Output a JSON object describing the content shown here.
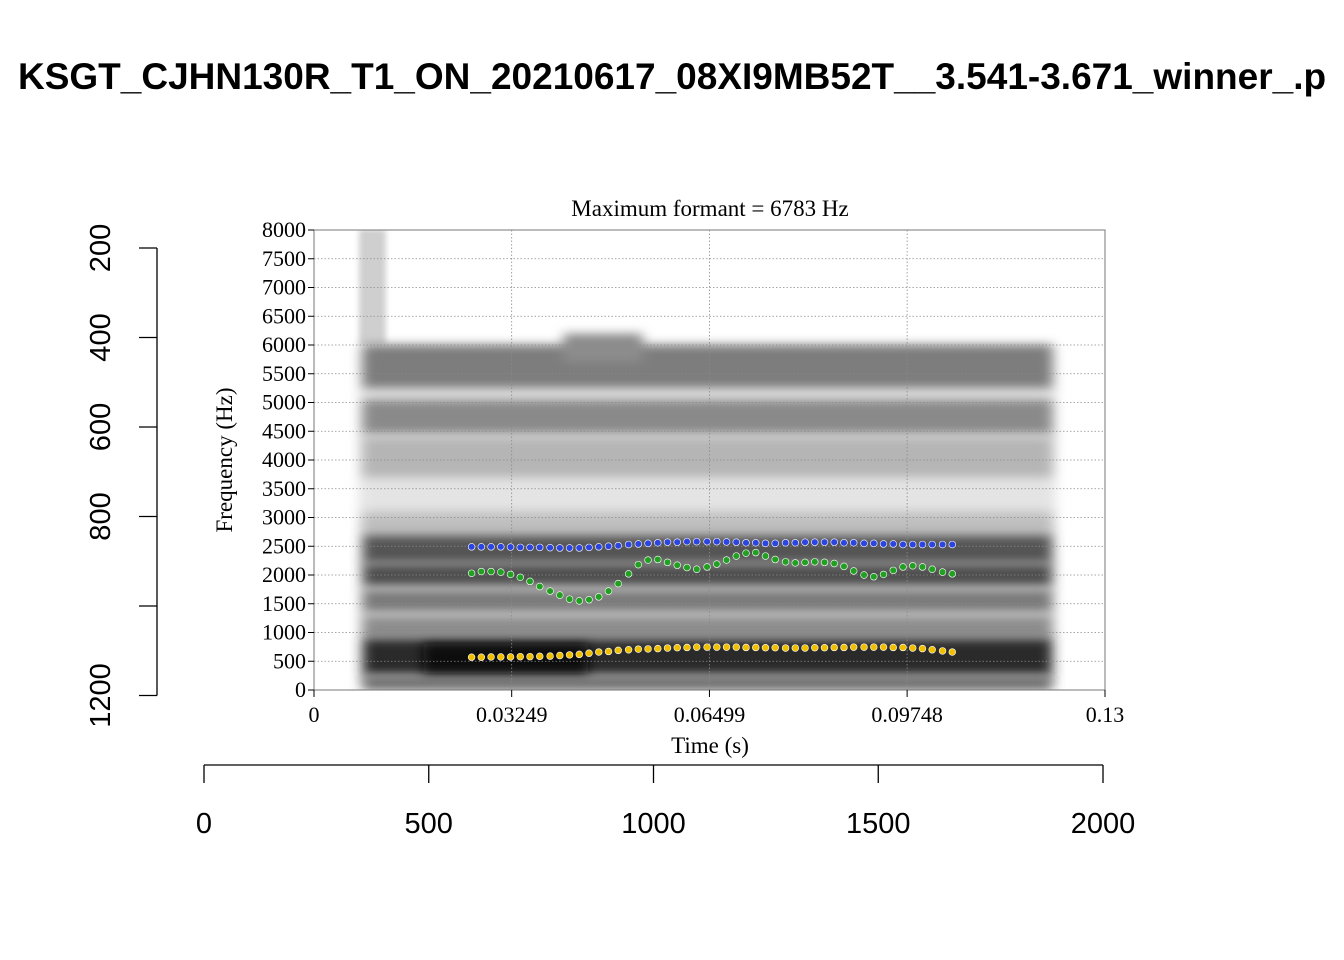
{
  "title": "KSGT_CJHN130R_T1_ON_20210617_08XI9MB52T__3.541-3.671_winner_.p",
  "chart_data": {
    "type": "scatter",
    "title": "Maximum formant  =  6783 Hz",
    "xlabel": "Time (s)",
    "ylabel": "Frequency (Hz)",
    "xlim": [
      0,
      0.13
    ],
    "ylim": [
      0,
      8000
    ],
    "x_ticks": [
      "0",
      "0.03249",
      "0.06499",
      "0.09748",
      "0.13"
    ],
    "y_ticks": [
      "0",
      "500",
      "1000",
      "1500",
      "2000",
      "2500",
      "3000",
      "3500",
      "4000",
      "4500",
      "5000",
      "5500",
      "6000",
      "6500",
      "7000",
      "7500",
      "8000"
    ],
    "grid": true,
    "background": "spectrogram (grayscale)",
    "outer_axes": {
      "bottom": {
        "range": [
          0,
          2000
        ],
        "ticks": [
          "0",
          "500",
          "1000",
          "1500",
          "2000"
        ]
      },
      "left": {
        "range": [
          1200,
          100
        ],
        "ticks": [
          "200",
          "400",
          "600",
          "800",
          "1200"
        ]
      }
    },
    "series": [
      {
        "color": "#f0c000",
        "x": [
          0.0259,
          0.0275,
          0.0291,
          0.0307,
          0.0323,
          0.0339,
          0.0355,
          0.0371,
          0.0388,
          0.0404,
          0.042,
          0.0436,
          0.0452,
          0.0468,
          0.0484,
          0.05,
          0.0517,
          0.0533,
          0.0549,
          0.0565,
          0.0581,
          0.0597,
          0.0613,
          0.0629,
          0.0646,
          0.0662,
          0.0678,
          0.0694,
          0.071,
          0.0726,
          0.0742,
          0.0758,
          0.0775,
          0.0791,
          0.0807,
          0.0823,
          0.0839,
          0.0855,
          0.0871,
          0.0887,
          0.0904,
          0.092,
          0.0936,
          0.0952,
          0.0968,
          0.0984,
          0.1,
          0.1016,
          0.1033,
          0.1049
        ],
        "values": [
          570,
          570,
          575,
          575,
          575,
          580,
          580,
          585,
          590,
          600,
          610,
          620,
          640,
          660,
          670,
          690,
          700,
          710,
          715,
          720,
          730,
          735,
          740,
          745,
          745,
          745,
          745,
          745,
          740,
          740,
          735,
          735,
          730,
          730,
          730,
          735,
          735,
          740,
          740,
          745,
          745,
          745,
          745,
          740,
          740,
          730,
          720,
          700,
          680,
          660
        ]
      },
      {
        "color": "#2c44e0",
        "x": [
          0.0259,
          0.0275,
          0.0291,
          0.0307,
          0.0323,
          0.0339,
          0.0355,
          0.0371,
          0.0388,
          0.0404,
          0.042,
          0.0436,
          0.0452,
          0.0468,
          0.0484,
          0.05,
          0.0517,
          0.0533,
          0.0549,
          0.0565,
          0.0581,
          0.0597,
          0.0613,
          0.0629,
          0.0646,
          0.0662,
          0.0678,
          0.0694,
          0.071,
          0.0726,
          0.0742,
          0.0758,
          0.0775,
          0.0791,
          0.0807,
          0.0823,
          0.0839,
          0.0855,
          0.0871,
          0.0887,
          0.0904,
          0.092,
          0.0936,
          0.0952,
          0.0968,
          0.0984,
          0.1,
          0.1016,
          0.1033,
          0.1049
        ],
        "values": [
          2490,
          2490,
          2490,
          2490,
          2485,
          2480,
          2480,
          2480,
          2475,
          2470,
          2470,
          2470,
          2480,
          2490,
          2500,
          2510,
          2530,
          2540,
          2550,
          2560,
          2570,
          2570,
          2580,
          2580,
          2580,
          2580,
          2575,
          2570,
          2560,
          2560,
          2550,
          2550,
          2560,
          2560,
          2570,
          2570,
          2570,
          2570,
          2560,
          2560,
          2550,
          2550,
          2540,
          2540,
          2530,
          2530,
          2530,
          2530,
          2530,
          2530
        ]
      },
      {
        "color": "#22a022",
        "x": [
          0.0259,
          0.0275,
          0.0291,
          0.0307,
          0.0323,
          0.0339,
          0.0355,
          0.0371,
          0.0388,
          0.0404,
          0.042,
          0.0436,
          0.0452,
          0.0468,
          0.0484,
          0.05,
          0.0517,
          0.0533,
          0.0549,
          0.0565,
          0.0581,
          0.0597,
          0.0613,
          0.0629,
          0.0646,
          0.0662,
          0.0678,
          0.0694,
          0.071,
          0.0726,
          0.0742,
          0.0758,
          0.0775,
          0.0791,
          0.0807,
          0.0823,
          0.0839,
          0.0855,
          0.0871,
          0.0887,
          0.0904,
          0.092,
          0.0936,
          0.0952,
          0.0968,
          0.0984,
          0.1,
          0.1016,
          0.1033,
          0.1049
        ],
        "values": [
          2030,
          2060,
          2060,
          2050,
          2010,
          1960,
          1890,
          1800,
          1720,
          1650,
          1580,
          1550,
          1570,
          1620,
          1720,
          1850,
          2020,
          2180,
          2260,
          2270,
          2220,
          2170,
          2130,
          2100,
          2140,
          2190,
          2260,
          2330,
          2380,
          2390,
          2330,
          2270,
          2230,
          2210,
          2220,
          2230,
          2220,
          2200,
          2150,
          2070,
          2000,
          1970,
          2010,
          2080,
          2140,
          2160,
          2140,
          2100,
          2050,
          2020
        ]
      }
    ]
  }
}
